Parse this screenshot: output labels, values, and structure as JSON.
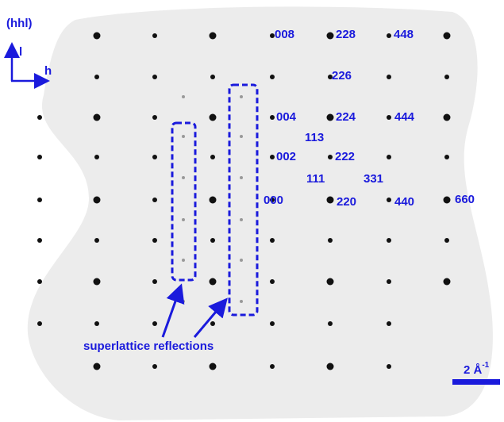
{
  "zone_label": "(hhl)",
  "axis_l": "l",
  "axis_h": "h",
  "reflections": [
    "008",
    "228",
    "448",
    "226",
    "004",
    "224",
    "444",
    "113",
    "002",
    "222",
    "111",
    "331",
    "000",
    "220",
    "440",
    "660"
  ],
  "annotation": "superlattice reflections",
  "scale_bar": {
    "text": "2 Å",
    "superscript": "-1"
  }
}
